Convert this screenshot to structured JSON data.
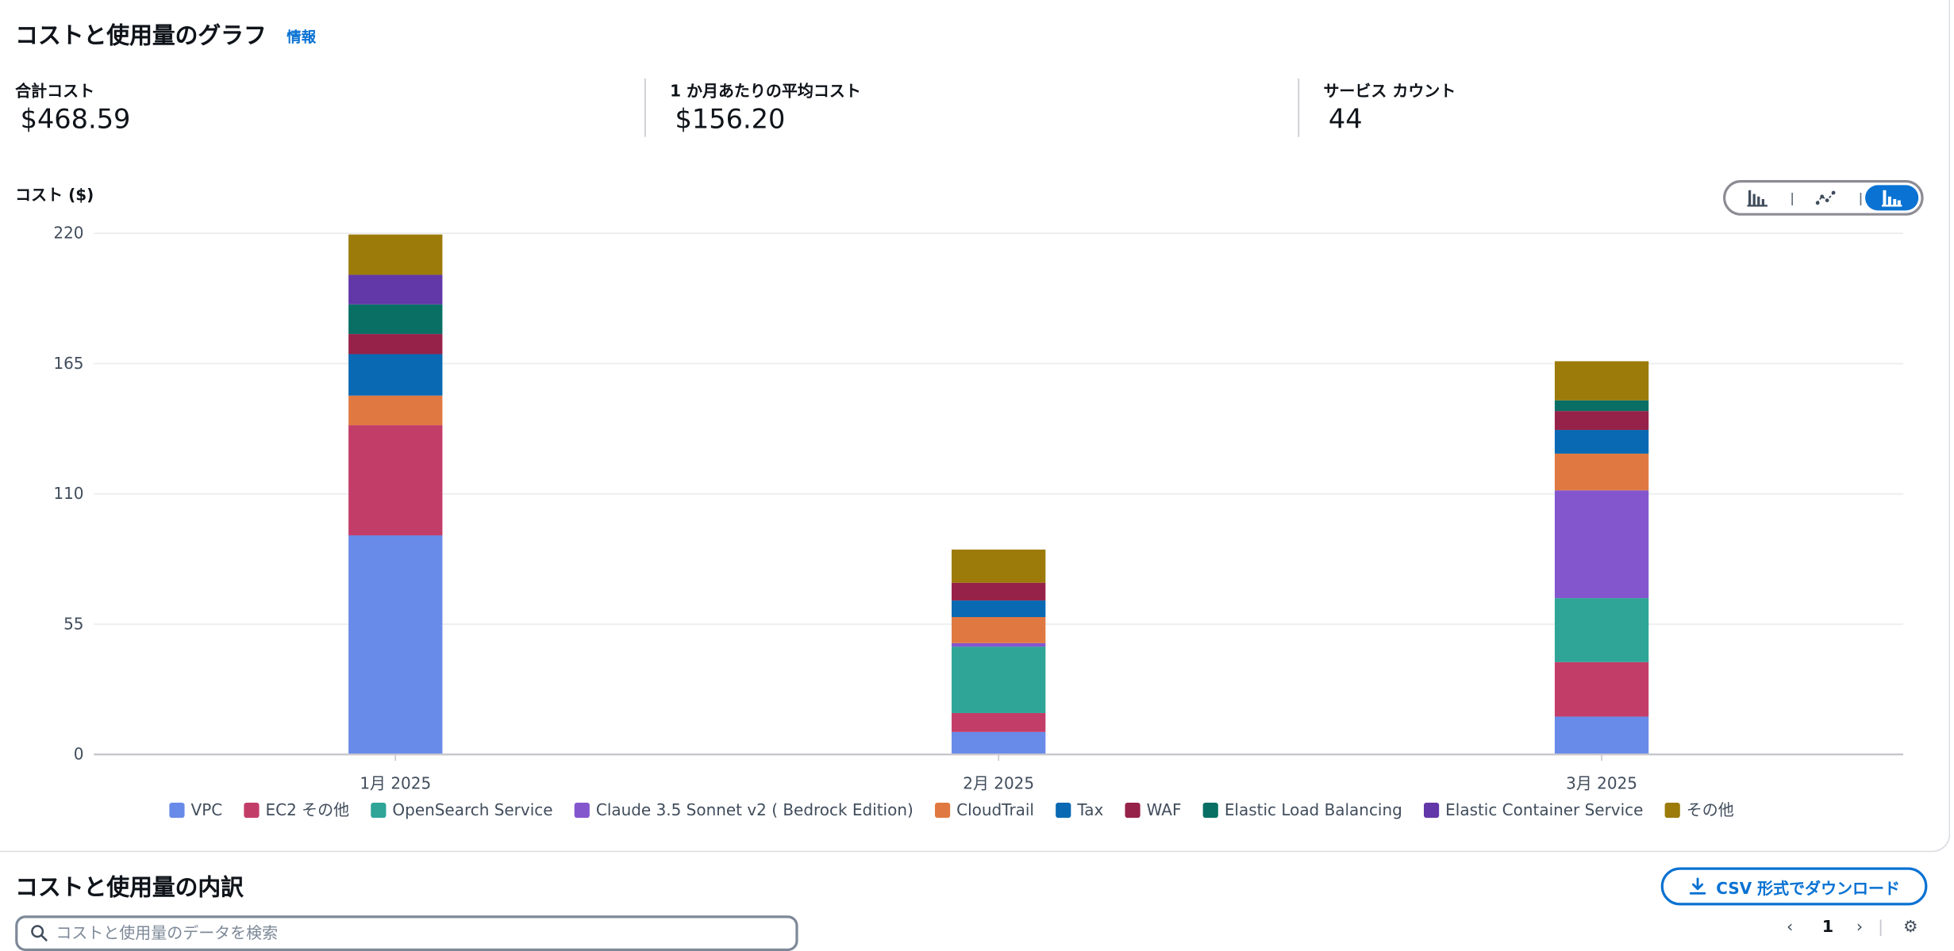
{
  "header": {
    "title": "コストと使用量のグラフ",
    "info_link": "情報"
  },
  "metrics": [
    {
      "label": "合計コスト",
      "value": "$468.59"
    },
    {
      "label": "1 か月あたりの平均コスト",
      "value": "$156.20"
    },
    {
      "label": "サービス カウント",
      "value": "44"
    }
  ],
  "chart_type_toggle": {
    "options": [
      "bar-chart-icon",
      "line-chart-icon",
      "stacked-bar-chart-icon"
    ],
    "selected": "stacked-bar-chart-icon"
  },
  "chart_data": {
    "type": "bar",
    "stacked": true,
    "ylabel": "コスト ($)",
    "ylim": [
      0,
      220
    ],
    "yticks": [
      0,
      55,
      110,
      165,
      220
    ],
    "categories": [
      "1月 2025",
      "2月 2025",
      "3月 2025"
    ],
    "grid": true,
    "legend_position": "bottom",
    "series": [
      {
        "name": "VPC",
        "color": "#688ae8",
        "values": [
          92.5,
          9.5,
          16.0
        ]
      },
      {
        "name": "EC2 その他",
        "color": "#c33d69",
        "values": [
          46.5,
          8.0,
          23.0
        ]
      },
      {
        "name": "OpenSearch Service",
        "color": "#2ea597",
        "values": [
          0,
          28.0,
          27.0
        ]
      },
      {
        "name": "Claude 3.5 Sonnet v2 ( Bedrock Edition)",
        "color": "#8456ce",
        "values": [
          0,
          1.5,
          45.5
        ]
      },
      {
        "name": "CloudTrail",
        "color": "#e07941",
        "values": [
          12.5,
          11.0,
          15.5
        ]
      },
      {
        "name": "Tax",
        "color": "#0969b3",
        "values": [
          17.5,
          7.0,
          10.0
        ]
      },
      {
        "name": "WAF",
        "color": "#962249",
        "values": [
          8.5,
          7.5,
          8.0
        ]
      },
      {
        "name": "Elastic Load Balancing",
        "color": "#096f64",
        "values": [
          12.5,
          0,
          4.5
        ]
      },
      {
        "name": "Elastic Container Service",
        "color": "#6237a7",
        "values": [
          12.5,
          0,
          0
        ]
      },
      {
        "name": "その他",
        "color": "#9c7b0a",
        "values": [
          17.0,
          14.0,
          16.5
        ]
      }
    ]
  },
  "breakdown": {
    "title": "コストと使用量の内訳",
    "csv_button": "CSV 形式でダウンロード",
    "search_placeholder": "コストと使用量のデータを検索",
    "page_number": "1"
  }
}
